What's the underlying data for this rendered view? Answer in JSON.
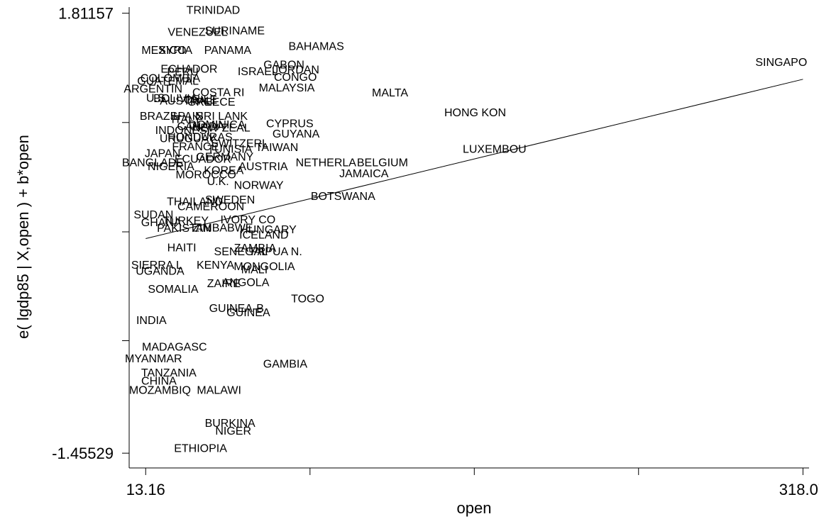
{
  "chart_data": {
    "type": "scatter",
    "xlabel": "open",
    "ylabel": "e( lgdp85 | X,open ) + b*open",
    "x_ticks": [
      {
        "value": 13.16,
        "label": "13.16"
      },
      {
        "value": 89.39,
        "label": ""
      },
      {
        "value": 165.6,
        "label": ""
      },
      {
        "value": 241.8,
        "label": ""
      },
      {
        "value": 318.07,
        "label": "318.07"
      }
    ],
    "y_ticks": [
      {
        "value": 1.81157,
        "label": "1.81157"
      },
      {
        "value": 1.0,
        "label": ""
      },
      {
        "value": 0.18814,
        "label": ""
      },
      {
        "value": -0.62,
        "label": ""
      },
      {
        "value": -1.45529,
        "label": "-1.45529"
      }
    ],
    "xlim": [
      5.5,
      320.9
    ],
    "ylim": [
      -1.565,
      1.857
    ],
    "fit_line": {
      "x": [
        13.16,
        318.07
      ],
      "y": [
        0.138,
        1.321
      ]
    },
    "points": [
      {
        "label": "TRINIDAD",
        "x": 44.5,
        "y": 1.838
      },
      {
        "label": "VENEZUEL",
        "x": 37.3,
        "y": 1.676
      },
      {
        "label": "SURINAME",
        "x": 54.5,
        "y": 1.686
      },
      {
        "label": "BAHAMAS",
        "x": 92.3,
        "y": 1.569
      },
      {
        "label": "MEXICO",
        "x": 21.6,
        "y": 1.54
      },
      {
        "label": "SYRIA",
        "x": 26.9,
        "y": 1.54
      },
      {
        "label": "PANAMA",
        "x": 51.2,
        "y": 1.54
      },
      {
        "label": "GABON",
        "x": 77.3,
        "y": 1.434
      },
      {
        "label": "SINGAPO",
        "x": 308.0,
        "y": 1.452
      },
      {
        "label": "ECHADOR",
        "x": 33.3,
        "y": 1.402
      },
      {
        "label": "PERU",
        "x": 30.4,
        "y": 1.38
      },
      {
        "label": "ISRAEL",
        "x": 65.2,
        "y": 1.383
      },
      {
        "label": "JORDAN",
        "x": 82.9,
        "y": 1.397
      },
      {
        "label": "COLOMBIA",
        "x": 24.6,
        "y": 1.332
      },
      {
        "label": "CONGO",
        "x": 82.6,
        "y": 1.34
      },
      {
        "label": "GUATEMAL",
        "x": 23.5,
        "y": 1.311
      },
      {
        "label": "ARGENTIN",
        "x": 16.6,
        "y": 1.254
      },
      {
        "label": "MALAYSIA",
        "x": 78.6,
        "y": 1.261
      },
      {
        "label": "COSTA RI",
        "x": 46.9,
        "y": 1.229
      },
      {
        "label": "MALTA",
        "x": 126.5,
        "y": 1.225
      },
      {
        "label": "U.S.",
        "x": 18.5,
        "y": 1.186
      },
      {
        "label": "BOLIVIA",
        "x": 27.0,
        "y": 1.183
      },
      {
        "label": "AUSTRALI",
        "x": 32.6,
        "y": 1.165
      },
      {
        "label": "CHILE",
        "x": 38.6,
        "y": 1.172
      },
      {
        "label": "GREECE",
        "x": 43.6,
        "y": 1.158
      },
      {
        "label": "BRAZIL",
        "x": 19.6,
        "y": 1.052
      },
      {
        "label": "SPAIN",
        "x": 32.2,
        "y": 1.052
      },
      {
        "label": "SRI LANK",
        "x": 48.5,
        "y": 1.052
      },
      {
        "label": "HONG KON",
        "x": 166.0,
        "y": 1.077
      },
      {
        "label": "ITALY",
        "x": 32.0,
        "y": 1.029
      },
      {
        "label": "DOMINICA",
        "x": 46.2,
        "y": 0.989
      },
      {
        "label": "CYPRUS",
        "x": 80.0,
        "y": 0.996
      },
      {
        "label": "CANADA",
        "x": 38.7,
        "y": 0.975
      },
      {
        "label": "NEW ZEAL",
        "x": 48.2,
        "y": 0.964
      },
      {
        "label": "INDONESI",
        "x": 30.3,
        "y": 0.946
      },
      {
        "label": "GUYANA",
        "x": 82.9,
        "y": 0.921
      },
      {
        "label": "HONDURAS",
        "x": 38.4,
        "y": 0.896
      },
      {
        "label": "URUGUAY",
        "x": 32.6,
        "y": 0.886
      },
      {
        "label": "SWITZERL",
        "x": 56.7,
        "y": 0.85
      },
      {
        "label": "TAIWAN",
        "x": 74.0,
        "y": 0.821
      },
      {
        "label": "FRANCE",
        "x": 36.2,
        "y": 0.825
      },
      {
        "label": "TUNISIA",
        "x": 52.2,
        "y": 0.807
      },
      {
        "label": "LUXEMBOU",
        "x": 175.0,
        "y": 0.807
      },
      {
        "label": "JAPAN",
        "x": 21.0,
        "y": 0.775
      },
      {
        "label": "BANGLADE",
        "x": 16.5,
        "y": 0.707
      },
      {
        "label": "ECUADOR",
        "x": 39.7,
        "y": 0.732
      },
      {
        "label": "GERMANY",
        "x": 49.9,
        "y": 0.75
      },
      {
        "label": "NETHERLA",
        "x": 96.8,
        "y": 0.707
      },
      {
        "label": "BELGIUM",
        "x": 123.0,
        "y": 0.707
      },
      {
        "label": "NIGERIA",
        "x": 24.9,
        "y": 0.678
      },
      {
        "label": "AUSTRIA",
        "x": 67.7,
        "y": 0.678
      },
      {
        "label": "KOREA",
        "x": 49.4,
        "y": 0.649
      },
      {
        "label": "MOROCCO",
        "x": 41.1,
        "y": 0.617
      },
      {
        "label": "JAMAICA",
        "x": 114.4,
        "y": 0.624
      },
      {
        "label": "U.K.",
        "x": 46.7,
        "y": 0.567
      },
      {
        "label": "NORWAY",
        "x": 65.6,
        "y": 0.538
      },
      {
        "label": "BOTSWANA",
        "x": 104.7,
        "y": 0.456
      },
      {
        "label": "THAILAND",
        "x": 36.0,
        "y": 0.416
      },
      {
        "label": "SWEDEN",
        "x": 52.3,
        "y": 0.43
      },
      {
        "label": "CAMEROON",
        "x": 43.4,
        "y": 0.38
      },
      {
        "label": "SUDAN",
        "x": 16.8,
        "y": 0.319
      },
      {
        "label": "GHANA",
        "x": 20.4,
        "y": 0.262
      },
      {
        "label": "TURKEY",
        "x": 31.7,
        "y": 0.276
      },
      {
        "label": "IVORY CO",
        "x": 60.6,
        "y": 0.283
      },
      {
        "label": "PAKISTAN",
        "x": 31.0,
        "y": 0.219
      },
      {
        "label": "ZIMBABWE",
        "x": 48.9,
        "y": 0.222
      },
      {
        "label": "HUNGARY",
        "x": 70.0,
        "y": 0.208
      },
      {
        "label": "ICELAND",
        "x": 68.0,
        "y": 0.17
      },
      {
        "label": "HAITI",
        "x": 29.9,
        "y": 0.076
      },
      {
        "label": "ZAMBIA",
        "x": 63.9,
        "y": 0.072
      },
      {
        "label": "PAPUA N.",
        "x": 73.8,
        "y": 0.047
      },
      {
        "label": "SENEGAL",
        "x": 57.3,
        "y": 0.047
      },
      {
        "label": "SIERRA L",
        "x": 18.3,
        "y": -0.055
      },
      {
        "label": "KENYA",
        "x": 45.5,
        "y": -0.055
      },
      {
        "label": "MONGOLIA",
        "x": 68.2,
        "y": -0.065
      },
      {
        "label": "UGANDA",
        "x": 19.8,
        "y": -0.098
      },
      {
        "label": "MALI",
        "x": 63.6,
        "y": -0.087
      },
      {
        "label": "ZAIRE",
        "x": 49.4,
        "y": -0.191
      },
      {
        "label": "ANGOLA",
        "x": 59.5,
        "y": -0.184
      },
      {
        "label": "SOMALIA",
        "x": 25.9,
        "y": -0.234
      },
      {
        "label": "TOGO",
        "x": 88.3,
        "y": -0.303
      },
      {
        "label": "GUINEA-B",
        "x": 55.3,
        "y": -0.376
      },
      {
        "label": "GUINEA",
        "x": 60.8,
        "y": -0.408
      },
      {
        "label": "INDIA",
        "x": 15.8,
        "y": -0.465
      },
      {
        "label": "MADAGASC",
        "x": 26.5,
        "y": -0.663
      },
      {
        "label": "MYANMAR",
        "x": 16.8,
        "y": -0.749
      },
      {
        "label": "GAMBIA",
        "x": 77.9,
        "y": -0.788
      },
      {
        "label": "TANZANIA",
        "x": 23.9,
        "y": -0.853
      },
      {
        "label": "CHINA",
        "x": 19.3,
        "y": -0.914
      },
      {
        "label": "MOZAMBIQ",
        "x": 19.8,
        "y": -0.982
      },
      {
        "label": "MALAWI",
        "x": 47.2,
        "y": -0.982
      },
      {
        "label": "BURKINA",
        "x": 52.3,
        "y": -1.229
      },
      {
        "label": "NIGER",
        "x": 53.8,
        "y": -1.286
      },
      {
        "label": "ETHIOPIA",
        "x": 38.6,
        "y": -1.416
      }
    ]
  }
}
